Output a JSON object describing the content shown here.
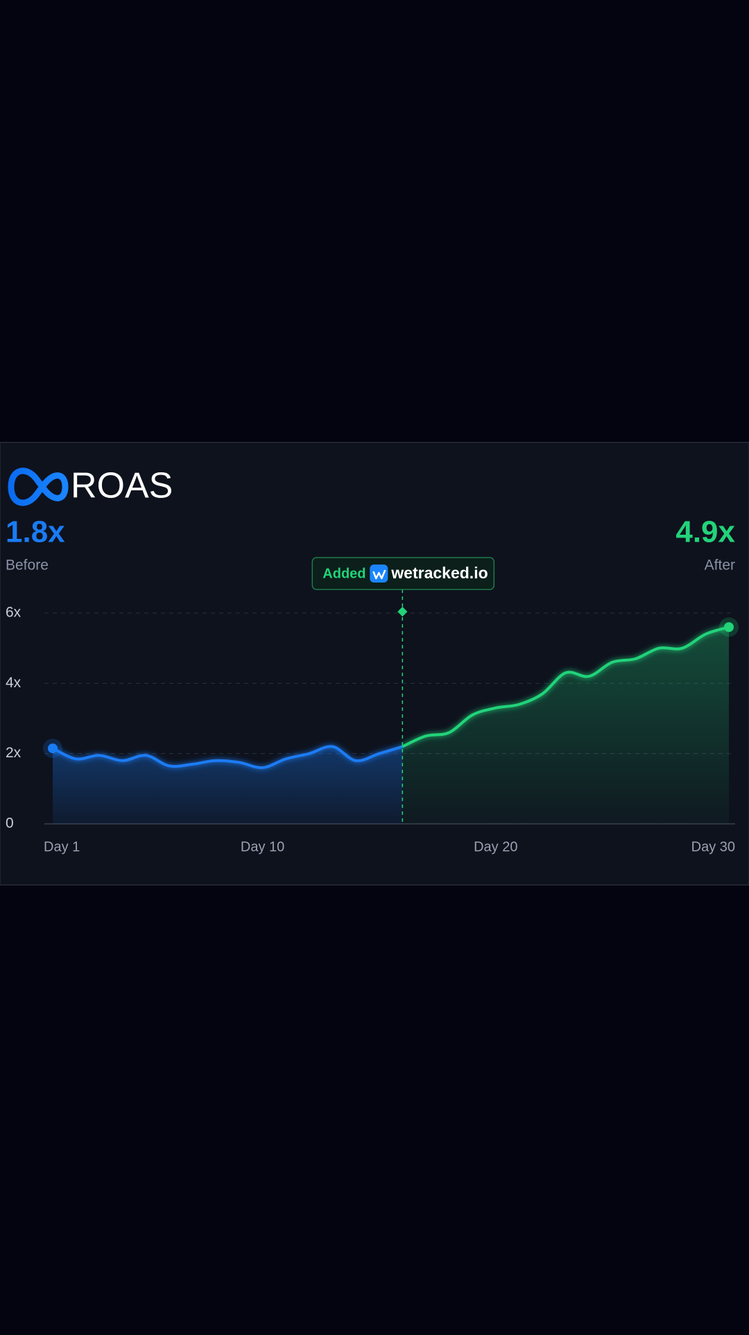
{
  "chart_data": {
    "type": "line",
    "title": "ROAS",
    "xlim": [
      1,
      30
    ],
    "xticks": [
      {
        "value": 1,
        "label": "Day 1"
      },
      {
        "value": 10,
        "label": "Day 10"
      },
      {
        "value": 20,
        "label": "Day 20"
      },
      {
        "value": 30,
        "label": "Day 30"
      }
    ],
    "ylim": [
      0,
      6
    ],
    "yticks": [
      0,
      {
        "value": 2,
        "label": "2x"
      },
      {
        "value": 4,
        "label": "4x"
      },
      {
        "value": 6,
        "label": "6x"
      }
    ],
    "grid": true,
    "annotation": {
      "text": "Added",
      "brand": "wetracked.io",
      "x": 16
    },
    "series": [
      {
        "name": "Before",
        "summary": "1.8x",
        "color": "#1a7cf5",
        "x": [
          1,
          2,
          3,
          4,
          5,
          6,
          7,
          8,
          9,
          10,
          11,
          12,
          13,
          14,
          15,
          16
        ],
        "values": [
          2.15,
          1.85,
          1.95,
          1.8,
          1.95,
          1.65,
          1.7,
          1.8,
          1.75,
          1.6,
          1.85,
          2.0,
          2.2,
          1.8,
          2.0,
          2.2
        ]
      },
      {
        "name": "After",
        "summary": "4.9x",
        "color": "#22d37a",
        "x": [
          16,
          17,
          18,
          19,
          20,
          21,
          22,
          23,
          24,
          25,
          26,
          27,
          28,
          29,
          30
        ],
        "values": [
          2.2,
          2.5,
          2.6,
          3.1,
          3.3,
          3.4,
          3.7,
          4.3,
          4.2,
          4.6,
          4.7,
          5.0,
          5.0,
          5.4,
          5.6
        ]
      }
    ]
  }
}
